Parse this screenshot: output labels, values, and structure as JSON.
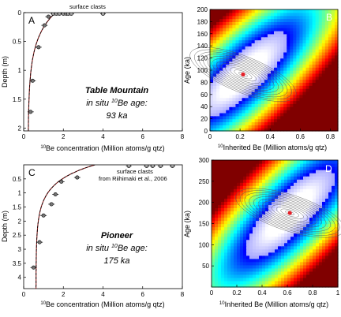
{
  "chart_data": [
    {
      "panel": "A",
      "type": "scatter",
      "site": "Table Mountain",
      "age_line1": "in situ ",
      "age_sup": "10",
      "age_line2": "Be age:",
      "age_value": "93 ka",
      "xlabel_sup": "10",
      "xlabel": "Be concentration (Million atoms/g qtz)",
      "ylabel": "Depth (m)",
      "xlim": [
        0,
        8
      ],
      "ylim": [
        0,
        2.05
      ],
      "y_inverted": true,
      "xticks": [
        "0",
        "2",
        "4",
        "6",
        "8"
      ],
      "yticks": [
        "0",
        "0.5",
        "1",
        "1.5",
        "2"
      ],
      "annotation": "surface clasts",
      "samples": [
        {
          "x": 0.35,
          "y": 1.72
        },
        {
          "x": 0.45,
          "y": 1.18
        },
        {
          "x": 0.75,
          "y": 0.6
        },
        {
          "x": 1.05,
          "y": 0.22
        },
        {
          "x": 1.25,
          "y": 0.07
        }
      ],
      "surface_clasts": [
        1.5,
        1.65,
        1.8,
        2.0,
        2.15,
        2.25,
        2.4,
        4.0
      ],
      "model_profile": {
        "inherited": 0.22,
        "surface": 1.6,
        "attenuation_m": 0.45
      }
    },
    {
      "panel": "B",
      "type": "heatmap",
      "xlabel_sup": "10",
      "xlabel": "Inherited Be (Million atoms/g qtz)",
      "ylabel": "Age (ka)",
      "xlim": [
        0,
        0.85
      ],
      "ylim": [
        0,
        200
      ],
      "xticks": [
        "0",
        "0.2",
        "0.4",
        "0.6",
        "0.8"
      ],
      "yticks": [
        "0",
        "20",
        "40",
        "60",
        "80",
        "100",
        "120",
        "140",
        "160",
        "180",
        "200"
      ],
      "best_fit": {
        "x": 0.22,
        "y": 93
      }
    },
    {
      "panel": "C",
      "type": "scatter",
      "site": "Pioneer",
      "age_line1": "in situ ",
      "age_sup": "10",
      "age_line2": "Be age:",
      "age_value": "175 ka",
      "xlabel_sup": "10",
      "xlabel": "Be concentration (Million atoms/g qtz)",
      "ylabel": "Depth (m)",
      "xlim": [
        0,
        8
      ],
      "ylim": [
        0,
        4.4
      ],
      "y_inverted": true,
      "xticks": [
        "0",
        "2",
        "4",
        "6",
        "8"
      ],
      "yticks": [
        "0.5",
        "1",
        "1.5",
        "2",
        "2.5",
        "3",
        "3.5",
        "4"
      ],
      "annotation_line1": "surface clasts",
      "annotation_line2": "from Riihimaki et al., 2006",
      "samples": [
        {
          "x": 0.5,
          "y": 3.65
        },
        {
          "x": 0.8,
          "y": 2.75
        },
        {
          "x": 1.0,
          "y": 1.8
        },
        {
          "x": 1.4,
          "y": 1.4
        },
        {
          "x": 1.6,
          "y": 1.05
        },
        {
          "x": 1.9,
          "y": 0.6
        },
        {
          "x": 2.7,
          "y": 0.45
        }
      ],
      "surface_clasts": [
        5.3,
        6.2,
        6.5,
        6.9,
        7.5
      ],
      "model_profile": {
        "inherited": 0.62,
        "surface": 3.6,
        "attenuation_m": 0.62
      }
    },
    {
      "panel": "D",
      "type": "heatmap",
      "xlabel_sup": "10",
      "xlabel": "Inherited Be (Million atoms/g qtz)",
      "ylabel": "Age (ka)",
      "xlim": [
        0,
        1
      ],
      "ylim": [
        0,
        300
      ],
      "xticks": [
        "0",
        "0.2",
        "0.4",
        "0.6",
        "0.8",
        "1"
      ],
      "yticks": [
        "50",
        "100",
        "150",
        "200",
        "250",
        "300"
      ],
      "best_fit": {
        "x": 0.62,
        "y": 175
      }
    }
  ]
}
